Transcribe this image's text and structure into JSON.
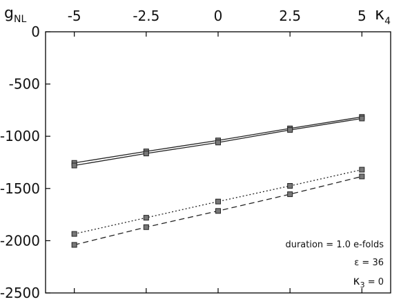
{
  "chart_data": {
    "type": "line",
    "xlabel": {
      "main": "κ",
      "sub": "4"
    },
    "ylabel": {
      "main": "g",
      "sub": "NL"
    },
    "xlim": [
      -6,
      6
    ],
    "ylim": [
      -2500,
      0
    ],
    "x_ticks": [
      -5,
      -2.5,
      0,
      2.5,
      5
    ],
    "x_tick_labels": [
      "-5",
      "-2.5",
      "0",
      "2.5",
      "5"
    ],
    "y_ticks": [
      0,
      -500,
      -1000,
      -1500,
      -2000,
      -2500
    ],
    "y_tick_labels": [
      "0",
      "-500",
      "-1000",
      "-1500",
      "-2000",
      "-2500"
    ],
    "x_axis_position": "top",
    "grid": false,
    "series": [
      {
        "style": "solid",
        "x": [
          -5,
          -2.5,
          0,
          2.5,
          5
        ],
        "y": [
          -1255,
          -1145,
          -1040,
          -925,
          -815
        ]
      },
      {
        "style": "solid",
        "x": [
          -5,
          -2.5,
          0,
          2.5,
          5
        ],
        "y": [
          -1280,
          -1165,
          -1060,
          -940,
          -830
        ]
      },
      {
        "style": "dotted",
        "x": [
          -5,
          -2.5,
          0,
          2.5,
          5
        ],
        "y": [
          -1935,
          -1780,
          -1625,
          -1475,
          -1320
        ]
      },
      {
        "style": "dashed",
        "x": [
          -5,
          -2.5,
          0,
          2.5,
          5
        ],
        "y": [
          -2040,
          -1870,
          -1715,
          -1555,
          -1385
        ]
      }
    ],
    "annotations": [
      {
        "text": "duration = 1.0 e-folds"
      },
      {
        "text": "ε = 36"
      },
      {
        "main": "κ",
        "sub": "3",
        "rest": " = 0"
      }
    ]
  }
}
